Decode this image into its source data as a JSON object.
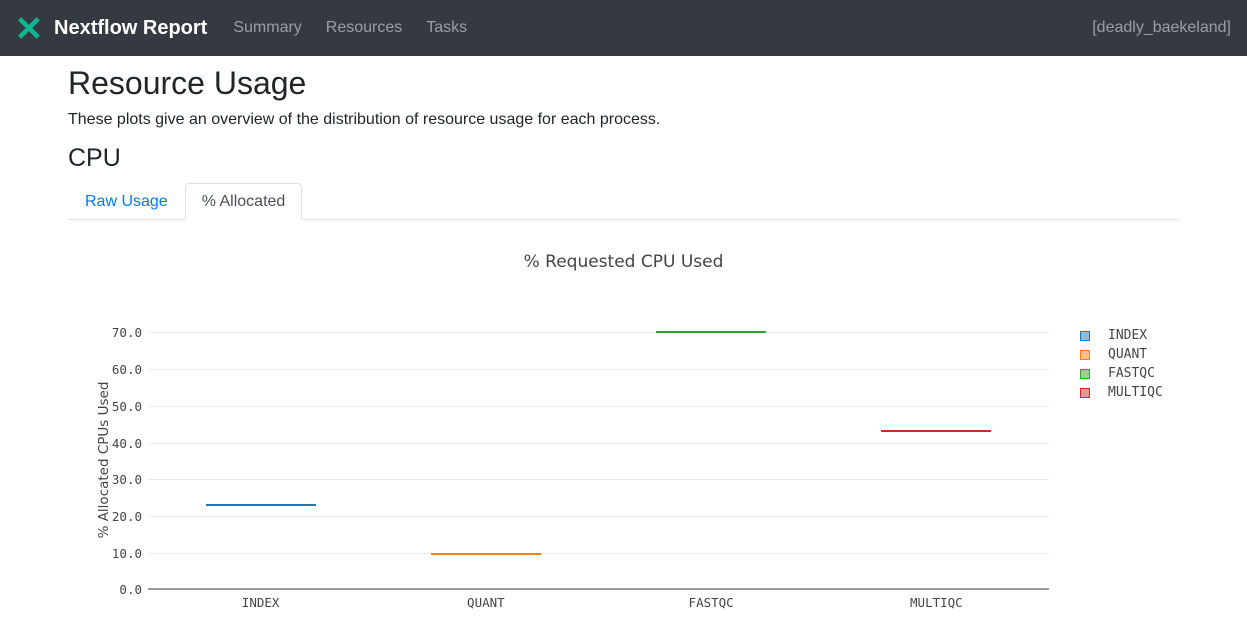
{
  "navbar": {
    "brand": "Nextflow Report",
    "logo_icon": "nextflow-logo",
    "items": [
      {
        "label": "Summary"
      },
      {
        "label": "Resources"
      },
      {
        "label": "Tasks"
      }
    ],
    "run_name": "[deadly_baekeland]"
  },
  "page": {
    "title": "Resource Usage",
    "subtitle": "These plots give an overview of the distribution of resource usage for each process.",
    "section_heading": "CPU"
  },
  "tabs": [
    {
      "label": "Raw Usage",
      "active": false
    },
    {
      "label": "% Allocated",
      "active": true
    }
  ],
  "theme": {
    "navbar_bg": "#343a40",
    "link_blue": "#007bff",
    "logo_teal": "#0fb491",
    "active_tab_text": "#495057",
    "chart_text": "#444444",
    "gridline": "#ebebeb",
    "axis_line": "#999999"
  },
  "chart_data": {
    "type": "box",
    "title": "% Requested CPU Used",
    "xlabel": "",
    "ylabel": "% Allocated CPUs Used",
    "categories": [
      "INDEX",
      "QUANT",
      "FASTQC",
      "MULTIQC"
    ],
    "series": [
      {
        "name": "INDEX",
        "value": 22.7,
        "color": "#1f77b4"
      },
      {
        "name": "QUANT",
        "value": 9.5,
        "color": "#ff7f0e"
      },
      {
        "name": "FASTQC",
        "value": 69.9,
        "color": "#2ca02c"
      },
      {
        "name": "MULTIQC",
        "value": 42.8,
        "color": "#d62728"
      }
    ],
    "ylim": [
      0,
      75
    ],
    "yticks": [
      0,
      10,
      20,
      30,
      40,
      50,
      60,
      70
    ],
    "ytick_format": "one-decimal",
    "grid": true,
    "legend_position": "right",
    "note": "Each process renders as a collapsed box plot (flat horizontal line) at its value"
  }
}
